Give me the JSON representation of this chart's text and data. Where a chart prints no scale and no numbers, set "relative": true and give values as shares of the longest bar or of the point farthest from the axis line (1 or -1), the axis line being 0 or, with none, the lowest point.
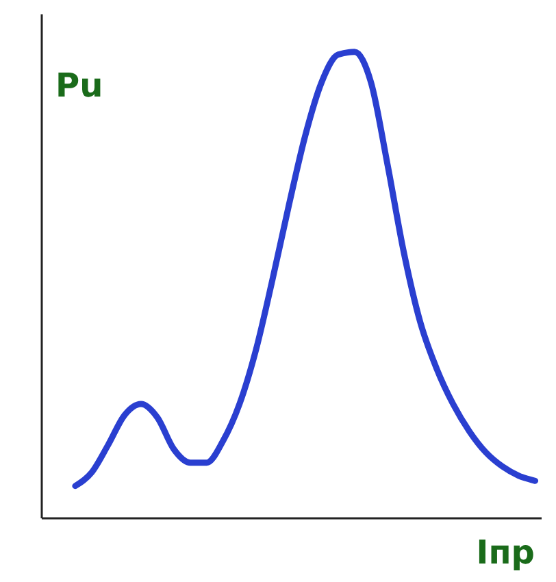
{
  "chart_data": {
    "type": "line",
    "relative": true,
    "xlabel": "Iпр",
    "ylabel": "Pu",
    "categories": [
      null,
      null,
      null,
      null,
      null,
      null,
      null,
      null,
      null,
      null,
      null,
      null,
      null,
      null,
      null,
      null,
      null,
      null,
      null,
      null,
      null,
      null,
      null,
      null,
      null,
      null,
      null,
      null,
      null
    ],
    "series": [
      {
        "color": "#2a3fd0",
        "values": [
          0.068,
          0.097,
          0.156,
          0.22,
          0.244,
          0.215,
          0.147,
          0.118,
          0.118,
          0.165,
          0.244,
          0.36,
          0.51,
          0.67,
          0.82,
          0.935,
          0.994,
          1,
          0.935,
          0.76,
          0.57,
          0.42,
          0.32,
          0.244,
          0.185,
          0.14,
          0.11,
          0.09,
          0.079
        ]
      }
    ]
  }
}
